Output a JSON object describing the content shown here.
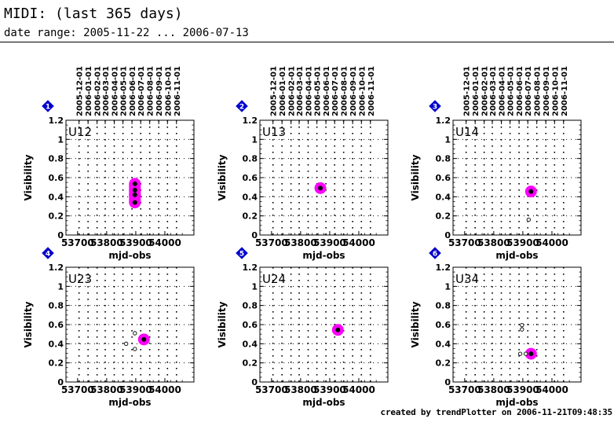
{
  "header": {
    "title": "MIDI: (last 365 days)",
    "subtitle": "date range: 2005-11-22 ... 2006-07-13"
  },
  "footer": "created by trendPlotter on 2006-11-21T09:48:35",
  "colors": {
    "highlight": "#ff00ff",
    "marker_fill": "#000000",
    "badge": "#0000cc"
  },
  "shared_axes": {
    "xlabel": "mjd-obs",
    "ylabel": "Visibility",
    "xlim": [
      53660,
      54100
    ],
    "ylim": [
      0,
      1.2
    ],
    "xticks": [
      53700,
      53800,
      53900,
      54000
    ],
    "yticks": [
      0,
      0.2,
      0.4,
      0.6,
      0.8,
      1,
      1.2
    ],
    "ytick_labels": [
      "0",
      "0.2",
      "0.4",
      "0.6",
      "0.8",
      "1",
      "1.2"
    ],
    "date_ticks": [
      "2005-12-01",
      "2006-01-01",
      "2006-02-01",
      "2006-03-01",
      "2006-04-01",
      "2006-05-01",
      "2006-06-01",
      "2006-07-01",
      "2006-08-01",
      "2006-09-01",
      "2006-10-01",
      "2006-11-01"
    ],
    "date_tick_mjd": [
      53705,
      53736,
      53767,
      53795,
      53826,
      53856,
      53887,
      53917,
      53948,
      53979,
      54009,
      54040
    ]
  },
  "chart_data": [
    {
      "type": "scatter",
      "badge": "1",
      "label": "U12",
      "series": [
        {
          "style": "filled-highlight",
          "points": [
            [
              53897,
              0.34
            ],
            [
              53897,
              0.42
            ],
            [
              53897,
              0.47
            ],
            [
              53897,
              0.535
            ]
          ]
        }
      ]
    },
    {
      "type": "scatter",
      "badge": "2",
      "label": "U13",
      "series": [
        {
          "style": "filled-highlight",
          "points": [
            [
              53868,
              0.49
            ]
          ]
        }
      ]
    },
    {
      "type": "scatter",
      "badge": "3",
      "label": "U14",
      "series": [
        {
          "style": "filled-highlight",
          "points": [
            [
              53928,
              0.455
            ]
          ]
        },
        {
          "style": "open",
          "points": [
            [
              53920,
              0.16
            ]
          ]
        }
      ]
    },
    {
      "type": "scatter",
      "badge": "4",
      "label": "U23",
      "series": [
        {
          "style": "filled-highlight",
          "points": [
            [
              53928,
              0.445
            ]
          ]
        },
        {
          "style": "open",
          "points": [
            [
              53867,
              0.4
            ],
            [
              53897,
              0.51
            ],
            [
              53897,
              0.345
            ]
          ]
        }
      ]
    },
    {
      "type": "scatter",
      "badge": "5",
      "label": "U24",
      "series": [
        {
          "style": "filled-highlight",
          "points": [
            [
              53928,
              0.545
            ]
          ]
        }
      ]
    },
    {
      "type": "scatter",
      "badge": "6",
      "label": "U34",
      "series": [
        {
          "style": "filled-highlight",
          "points": [
            [
              53928,
              0.295
            ]
          ]
        },
        {
          "style": "open",
          "points": [
            [
              53897,
              0.595
            ],
            [
              53897,
              0.55
            ],
            [
              53891,
              0.295
            ],
            [
              53910,
              0.295
            ]
          ]
        }
      ]
    }
  ]
}
